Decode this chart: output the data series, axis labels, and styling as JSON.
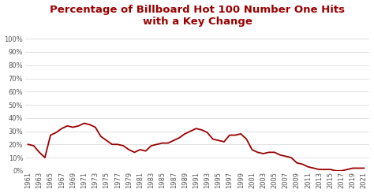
{
  "title": "Percentage of Billboard Hot 100 Number One Hits\nwith a Key Change",
  "title_color": "#990000",
  "line_color": "#990000",
  "bg_color": "#ffffff",
  "grid_color": "#dddddd",
  "tick_color": "#555555",
  "yticks": [
    0,
    10,
    20,
    30,
    40,
    50,
    60,
    70,
    80,
    90,
    100
  ],
  "ylim": [
    0,
    107
  ],
  "xlim_start": 1960.5,
  "xlim_end": 2022.0,
  "years": [
    1961,
    1962,
    1963,
    1964,
    1965,
    1966,
    1967,
    1968,
    1969,
    1970,
    1971,
    1972,
    1973,
    1974,
    1975,
    1976,
    1977,
    1978,
    1979,
    1980,
    1981,
    1982,
    1983,
    1984,
    1985,
    1986,
    1987,
    1988,
    1989,
    1990,
    1991,
    1992,
    1993,
    1994,
    1995,
    1996,
    1997,
    1998,
    1999,
    2000,
    2001,
    2002,
    2003,
    2004,
    2005,
    2006,
    2007,
    2008,
    2009,
    2010,
    2011,
    2012,
    2013,
    2014,
    2015,
    2016,
    2017,
    2018,
    2019,
    2020,
    2021
  ],
  "values": [
    20,
    19,
    14,
    10,
    27,
    29,
    32,
    34,
    33,
    34,
    36,
    35,
    33,
    26,
    23,
    20,
    20,
    19,
    16,
    14,
    16,
    15,
    19,
    20,
    21,
    21,
    23,
    25,
    28,
    30,
    32,
    31,
    29,
    24,
    23,
    22,
    27,
    27,
    28,
    24,
    16,
    14,
    13,
    14,
    14,
    12,
    11,
    10,
    6,
    5,
    3,
    2,
    1,
    1,
    1,
    0,
    0,
    1,
    2,
    2,
    2
  ],
  "xtick_start": 1961,
  "xtick_end": 2022,
  "xtick_step": 2,
  "title_fontsize": 9.5,
  "tick_fontsize": 6.0,
  "line_width": 1.3
}
